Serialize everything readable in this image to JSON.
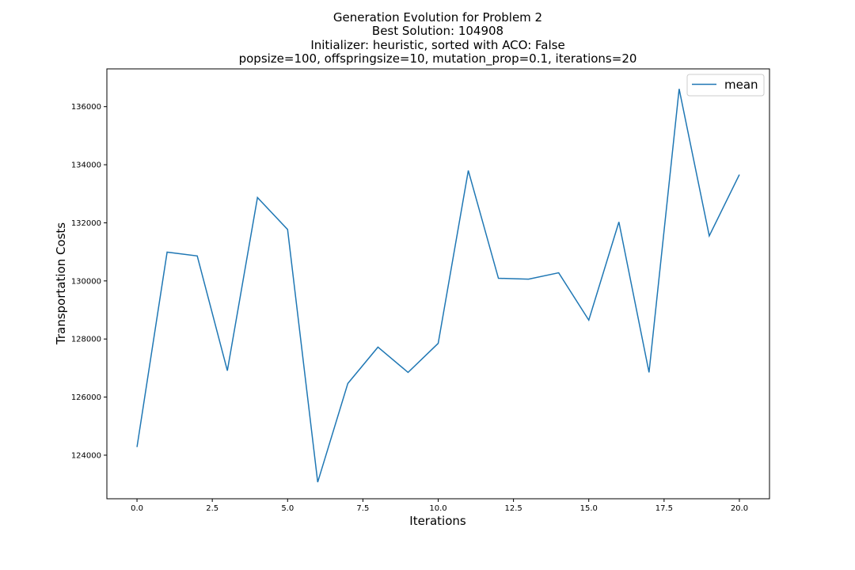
{
  "chart_data": {
    "type": "line",
    "title_lines": [
      "Generation Evolution for Problem 2",
      "Best Solution: 104908",
      "Initializer: heuristic, sorted with ACO: False",
      "popsize=100, offspringsize=10, mutation_prop=0.1, iterations=20"
    ],
    "xlabel": "Iterations",
    "ylabel": "Transportation Costs",
    "xlim": [
      -1.0,
      21.0
    ],
    "ylim": [
      122500,
      137300
    ],
    "xticks": [
      0.0,
      2.5,
      5.0,
      7.5,
      10.0,
      12.5,
      15.0,
      17.5,
      20.0
    ],
    "xtick_labels": [
      "0.0",
      "2.5",
      "5.0",
      "7.5",
      "10.0",
      "12.5",
      "15.0",
      "17.5",
      "20.0"
    ],
    "yticks": [
      124000,
      126000,
      128000,
      130000,
      132000,
      134000,
      136000
    ],
    "ytick_labels": [
      "124000",
      "126000",
      "128000",
      "130000",
      "132000",
      "134000",
      "136000"
    ],
    "grid": false,
    "legend_position": "top-right",
    "series": [
      {
        "name": "mean",
        "color": "#1f77b4",
        "x": [
          0,
          1,
          2,
          3,
          4,
          5,
          6,
          7,
          8,
          9,
          10,
          11,
          12,
          13,
          14,
          15,
          16,
          17,
          18,
          19,
          20
        ],
        "values": [
          124280,
          130990,
          130860,
          126910,
          132870,
          131770,
          123070,
          126470,
          127720,
          126850,
          127850,
          133800,
          130090,
          130060,
          130280,
          128650,
          132030,
          126850,
          136610,
          131550,
          133660
        ]
      }
    ]
  }
}
